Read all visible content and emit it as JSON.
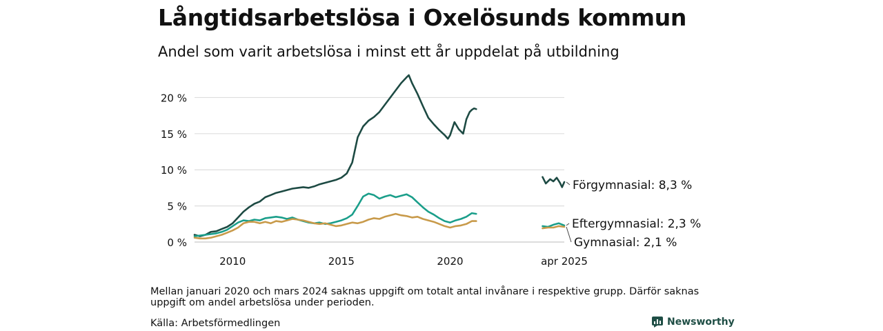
{
  "header": {
    "title": "Långtidsarbetslösa i Oxelösunds kommun",
    "subtitle": "Andel som varit arbetslösa i minst ett år uppdelat på utbildning"
  },
  "footer": {
    "note": "Mellan januari 2020 och mars 2024 saknas uppgift om totalt antal invånare i respektive grupp. Därför saknas uppgift om andel arbetslösa under perioden.",
    "source": "Källa: Arbetsförmedlingen",
    "brand": "Newsworthy",
    "brand_color": "#1f4e45"
  },
  "chart_data": {
    "type": "line",
    "title": "Långtidsarbetslösa i Oxelösunds kommun",
    "subtitle": "Andel som varit arbetslösa i minst ett år uppdelat på utbildning",
    "xlabel": "",
    "ylabel": "",
    "ylim": [
      0,
      23
    ],
    "yticks": [
      0,
      5,
      10,
      15,
      20
    ],
    "ytick_labels": [
      "0 %",
      "5 %",
      "10 %",
      "15 %",
      "20 %"
    ],
    "xticks": [
      2010,
      2015,
      2020,
      2025.25
    ],
    "xtick_labels": [
      "2010",
      "2015",
      "2020",
      "apr 2025"
    ],
    "grid": true,
    "legend": "direct labels at line ends",
    "series": [
      {
        "name": "Förgymnasial",
        "end_label": "Förgymnasial: 8,3 %",
        "color": "#1d4a43",
        "segments": [
          [
            [
              2008.25,
              1.0
            ],
            [
              2008.5,
              0.8
            ],
            [
              2008.75,
              1.0
            ],
            [
              2009.0,
              1.4
            ],
            [
              2009.25,
              1.5
            ],
            [
              2009.5,
              1.8
            ],
            [
              2009.75,
              2.1
            ],
            [
              2010.0,
              2.6
            ],
            [
              2010.25,
              3.4
            ],
            [
              2010.5,
              4.2
            ],
            [
              2010.75,
              4.8
            ],
            [
              2011.0,
              5.3
            ],
            [
              2011.25,
              5.6
            ],
            [
              2011.5,
              6.2
            ],
            [
              2011.75,
              6.5
            ],
            [
              2012.0,
              6.8
            ],
            [
              2012.25,
              7.0
            ],
            [
              2012.5,
              7.2
            ],
            [
              2012.75,
              7.4
            ],
            [
              2013.0,
              7.5
            ],
            [
              2013.25,
              7.6
            ],
            [
              2013.5,
              7.5
            ],
            [
              2013.75,
              7.7
            ],
            [
              2014.0,
              8.0
            ],
            [
              2014.25,
              8.2
            ],
            [
              2014.5,
              8.4
            ],
            [
              2014.75,
              8.6
            ],
            [
              2015.0,
              8.9
            ],
            [
              2015.25,
              9.5
            ],
            [
              2015.5,
              11.0
            ],
            [
              2015.75,
              14.5
            ],
            [
              2016.0,
              16.0
            ],
            [
              2016.25,
              16.8
            ],
            [
              2016.5,
              17.3
            ],
            [
              2016.75,
              18.0
            ],
            [
              2017.0,
              19.0
            ],
            [
              2017.25,
              20.0
            ],
            [
              2017.5,
              21.0
            ],
            [
              2017.75,
              22.0
            ],
            [
              2018.0,
              22.8
            ],
            [
              2018.1,
              23.1
            ],
            [
              2018.25,
              22.0
            ],
            [
              2018.5,
              20.5
            ],
            [
              2018.75,
              18.8
            ],
            [
              2019.0,
              17.2
            ],
            [
              2019.25,
              16.3
            ],
            [
              2019.5,
              15.5
            ],
            [
              2019.75,
              14.8
            ],
            [
              2019.9,
              14.3
            ],
            [
              2020.0,
              14.8
            ],
            [
              2020.2,
              16.6
            ],
            [
              2020.4,
              15.6
            ],
            [
              2020.6,
              15.0
            ],
            [
              2020.75,
              17.0
            ],
            [
              2020.9,
              18.0
            ],
            [
              2021.0,
              18.3
            ],
            [
              2021.1,
              18.5
            ],
            [
              2021.2,
              18.4
            ]
          ],
          [
            [
              2024.25,
              9.0
            ],
            [
              2024.4,
              8.1
            ],
            [
              2024.6,
              8.7
            ],
            [
              2024.75,
              8.4
            ],
            [
              2024.9,
              8.9
            ],
            [
              2025.05,
              8.2
            ],
            [
              2025.15,
              7.6
            ],
            [
              2025.25,
              8.3
            ]
          ]
        ]
      },
      {
        "name": "Eftergymnasial",
        "end_label": "Eftergymnasial: 2,3 %",
        "color": "#1a9e8a",
        "segments": [
          [
            [
              2008.25,
              0.8
            ],
            [
              2008.5,
              0.9
            ],
            [
              2008.75,
              1.0
            ],
            [
              2009.0,
              1.1
            ],
            [
              2009.25,
              1.2
            ],
            [
              2009.5,
              1.4
            ],
            [
              2009.75,
              1.7
            ],
            [
              2010.0,
              2.2
            ],
            [
              2010.25,
              2.7
            ],
            [
              2010.5,
              3.0
            ],
            [
              2010.75,
              2.9
            ],
            [
              2011.0,
              3.1
            ],
            [
              2011.25,
              3.0
            ],
            [
              2011.5,
              3.3
            ],
            [
              2011.75,
              3.4
            ],
            [
              2012.0,
              3.5
            ],
            [
              2012.25,
              3.4
            ],
            [
              2012.5,
              3.2
            ],
            [
              2012.75,
              3.4
            ],
            [
              2013.0,
              3.1
            ],
            [
              2013.25,
              2.9
            ],
            [
              2013.5,
              2.7
            ],
            [
              2013.75,
              2.6
            ],
            [
              2014.0,
              2.7
            ],
            [
              2014.25,
              2.5
            ],
            [
              2014.5,
              2.6
            ],
            [
              2014.75,
              2.8
            ],
            [
              2015.0,
              3.0
            ],
            [
              2015.25,
              3.3
            ],
            [
              2015.5,
              3.8
            ],
            [
              2015.75,
              5.0
            ],
            [
              2016.0,
              6.3
            ],
            [
              2016.25,
              6.7
            ],
            [
              2016.5,
              6.5
            ],
            [
              2016.75,
              6.0
            ],
            [
              2017.0,
              6.3
            ],
            [
              2017.25,
              6.5
            ],
            [
              2017.5,
              6.2
            ],
            [
              2017.75,
              6.4
            ],
            [
              2018.0,
              6.6
            ],
            [
              2018.25,
              6.2
            ],
            [
              2018.5,
              5.5
            ],
            [
              2018.75,
              4.8
            ],
            [
              2019.0,
              4.2
            ],
            [
              2019.25,
              3.8
            ],
            [
              2019.5,
              3.3
            ],
            [
              2019.75,
              2.9
            ],
            [
              2020.0,
              2.7
            ],
            [
              2020.25,
              3.0
            ],
            [
              2020.5,
              3.2
            ],
            [
              2020.75,
              3.5
            ],
            [
              2021.0,
              4.0
            ],
            [
              2021.2,
              3.9
            ]
          ],
          [
            [
              2024.25,
              2.2
            ],
            [
              2024.5,
              2.1
            ],
            [
              2024.75,
              2.4
            ],
            [
              2025.0,
              2.6
            ],
            [
              2025.25,
              2.3
            ]
          ]
        ]
      },
      {
        "name": "Gymnasial",
        "end_label": "Gymnasial: 2,1 %",
        "color": "#c89a4a",
        "segments": [
          [
            [
              2008.25,
              0.6
            ],
            [
              2008.5,
              0.5
            ],
            [
              2008.75,
              0.5
            ],
            [
              2009.0,
              0.6
            ],
            [
              2009.25,
              0.8
            ],
            [
              2009.5,
              1.0
            ],
            [
              2009.75,
              1.3
            ],
            [
              2010.0,
              1.6
            ],
            [
              2010.25,
              2.0
            ],
            [
              2010.5,
              2.6
            ],
            [
              2010.75,
              2.8
            ],
            [
              2011.0,
              2.8
            ],
            [
              2011.25,
              2.6
            ],
            [
              2011.5,
              2.8
            ],
            [
              2011.75,
              2.6
            ],
            [
              2012.0,
              2.9
            ],
            [
              2012.25,
              2.8
            ],
            [
              2012.5,
              3.0
            ],
            [
              2012.75,
              3.2
            ],
            [
              2013.0,
              3.1
            ],
            [
              2013.25,
              3.0
            ],
            [
              2013.5,
              2.8
            ],
            [
              2013.75,
              2.6
            ],
            [
              2014.0,
              2.5
            ],
            [
              2014.25,
              2.6
            ],
            [
              2014.5,
              2.4
            ],
            [
              2014.75,
              2.2
            ],
            [
              2015.0,
              2.3
            ],
            [
              2015.25,
              2.5
            ],
            [
              2015.5,
              2.7
            ],
            [
              2015.75,
              2.6
            ],
            [
              2016.0,
              2.8
            ],
            [
              2016.25,
              3.1
            ],
            [
              2016.5,
              3.3
            ],
            [
              2016.75,
              3.2
            ],
            [
              2017.0,
              3.5
            ],
            [
              2017.25,
              3.7
            ],
            [
              2017.5,
              3.9
            ],
            [
              2017.75,
              3.7
            ],
            [
              2018.0,
              3.6
            ],
            [
              2018.25,
              3.4
            ],
            [
              2018.5,
              3.5
            ],
            [
              2018.75,
              3.2
            ],
            [
              2019.0,
              3.0
            ],
            [
              2019.25,
              2.8
            ],
            [
              2019.5,
              2.5
            ],
            [
              2019.75,
              2.2
            ],
            [
              2020.0,
              2.0
            ],
            [
              2020.25,
              2.2
            ],
            [
              2020.5,
              2.3
            ],
            [
              2020.75,
              2.5
            ],
            [
              2021.0,
              2.9
            ],
            [
              2021.2,
              2.9
            ]
          ],
          [
            [
              2024.25,
              1.9
            ],
            [
              2024.5,
              2.0
            ],
            [
              2024.75,
              2.0
            ],
            [
              2025.0,
              2.2
            ],
            [
              2025.25,
              2.1
            ]
          ]
        ]
      }
    ]
  }
}
